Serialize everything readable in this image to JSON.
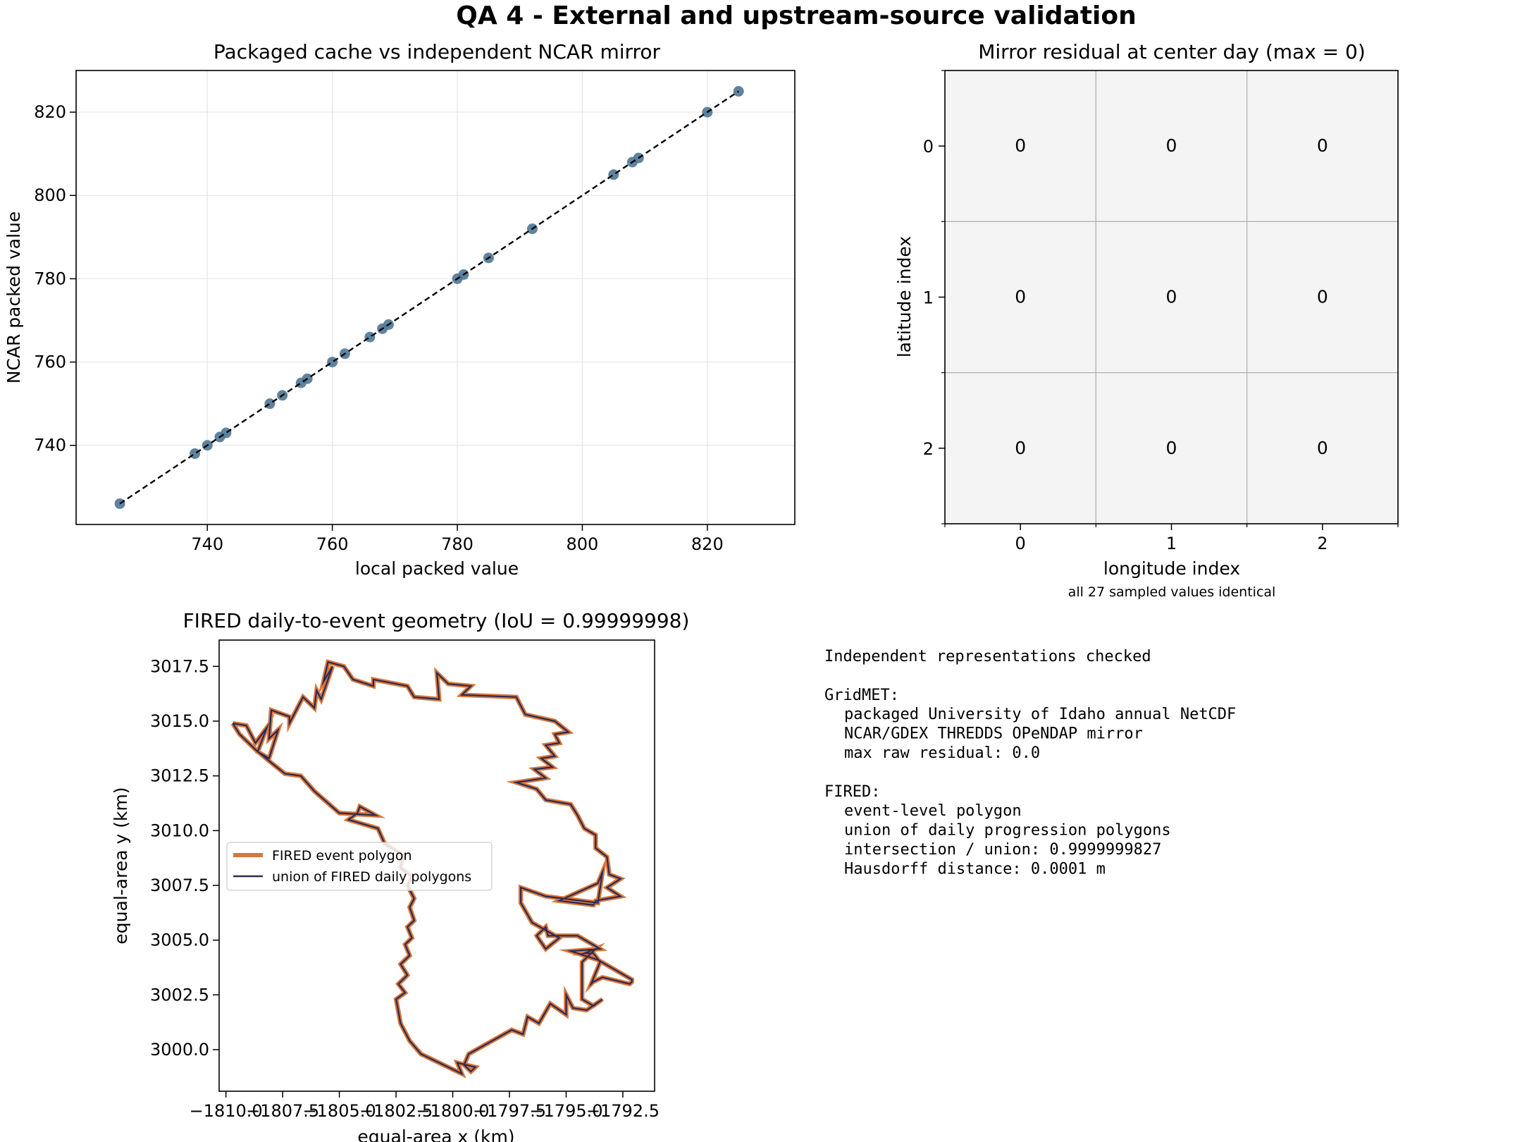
{
  "figure": {
    "title": "QA 4 - External and upstream-source validation"
  },
  "chart_data": [
    {
      "type": "scatter",
      "title": "Packaged cache vs independent NCAR mirror",
      "xlabel": "local packed value",
      "ylabel": "NCAR packed value",
      "xlim": [
        719,
        834
      ],
      "ylim": [
        721,
        830
      ],
      "xticks": [
        740,
        760,
        780,
        800,
        820
      ],
      "yticks": [
        740,
        760,
        780,
        800,
        820
      ],
      "grid": true,
      "reference_line": {
        "style": "dashed",
        "color": "#000000",
        "x": [
          726,
          825
        ],
        "y": [
          726,
          825
        ]
      },
      "point_color": "#4e7693",
      "points": [
        [
          726,
          726
        ],
        [
          738,
          738
        ],
        [
          740,
          740
        ],
        [
          742,
          742
        ],
        [
          743,
          743
        ],
        [
          750,
          750
        ],
        [
          752,
          752
        ],
        [
          755,
          755
        ],
        [
          756,
          756
        ],
        [
          760,
          760
        ],
        [
          762,
          762
        ],
        [
          766,
          766
        ],
        [
          768,
          768
        ],
        [
          769,
          769
        ],
        [
          780,
          780
        ],
        [
          781,
          781
        ],
        [
          785,
          785
        ],
        [
          792,
          792
        ],
        [
          805,
          805
        ],
        [
          808,
          808
        ],
        [
          809,
          809
        ],
        [
          820,
          820
        ],
        [
          825,
          825
        ]
      ]
    },
    {
      "type": "heatmap",
      "title": "Mirror residual at center day (max = 0)",
      "xlabel": "longitude index",
      "ylabel": "latitude index",
      "xticks": [
        0,
        1,
        2
      ],
      "yticks": [
        0,
        1,
        2
      ],
      "grid": true,
      "cell_color": "#f4f4f4",
      "grid_color": "#b0b0b0",
      "values": [
        [
          0,
          0,
          0
        ],
        [
          0,
          0,
          0
        ],
        [
          0,
          0,
          0
        ]
      ],
      "caption": "all 27 sampled values identical"
    },
    {
      "type": "line",
      "title": "FIRED daily-to-event geometry (IoU = 0.99999998)",
      "xlabel": "equal-area x (km)",
      "ylabel": "equal-area y (km)",
      "xlim": [
        -1810.3,
        -1791.1
      ],
      "ylim": [
        2998.1,
        3018.7
      ],
      "xticks": [
        -1810.0,
        -1807.5,
        -1805.0,
        -1802.5,
        -1800.0,
        -1797.5,
        -1795.0,
        -1792.5
      ],
      "xtick_labels": [
        "−1810.0",
        "−1807.5",
        "−1805.0",
        "−1802.5",
        "−1800.0",
        "−1797.5",
        "−1795.0",
        "−1792.5"
      ],
      "yticks": [
        3000.0,
        3002.5,
        3005.0,
        3007.5,
        3010.0,
        3012.5,
        3015.0,
        3017.5
      ],
      "ytick_labels": [
        "3000.0",
        "3002.5",
        "3005.0",
        "3007.5",
        "3010.0",
        "3012.5",
        "3015.0",
        "3017.5"
      ],
      "legend_position": "center-left",
      "series": [
        {
          "name": "FIRED event polygon",
          "color": "#d9773a"
        },
        {
          "name": "union of FIRED daily polygons",
          "color": "#2a2a55"
        }
      ],
      "outline": [
        [
          -1809.7,
          3014.9
        ],
        [
          -1809.1,
          3014.8
        ],
        [
          -1808.7,
          3014.0
        ],
        [
          -1808.2,
          3014.7
        ],
        [
          -1808.6,
          3013.6
        ],
        [
          -1808.1,
          3013.3
        ],
        [
          -1807.7,
          3014.6
        ],
        [
          -1808.1,
          3014.2
        ],
        [
          -1808.0,
          3015.5
        ],
        [
          -1807.2,
          3015.2
        ],
        [
          -1807.2,
          3014.9
        ],
        [
          -1806.6,
          3016.1
        ],
        [
          -1806.1,
          3015.6
        ],
        [
          -1806.0,
          3016.4
        ],
        [
          -1805.8,
          3016.0
        ],
        [
          -1805.3,
          3017.5
        ],
        [
          -1805.7,
          3016.8
        ],
        [
          -1805.5,
          3017.7
        ],
        [
          -1804.8,
          3017.5
        ],
        [
          -1804.4,
          3016.9
        ],
        [
          -1803.5,
          3016.6
        ],
        [
          -1803.5,
          3016.9
        ],
        [
          -1802.0,
          3016.6
        ],
        [
          -1801.7,
          3016.1
        ],
        [
          -1800.6,
          3016.0
        ],
        [
          -1800.7,
          3017.2
        ],
        [
          -1800.2,
          3016.7
        ],
        [
          -1799.2,
          3016.6
        ],
        [
          -1799.6,
          3016.2
        ],
        [
          -1797.2,
          3016.1
        ],
        [
          -1796.8,
          3015.3
        ],
        [
          -1795.5,
          3015.0
        ],
        [
          -1794.9,
          3014.5
        ],
        [
          -1795.5,
          3014.4
        ],
        [
          -1795.3,
          3014.0
        ],
        [
          -1795.9,
          3013.9
        ],
        [
          -1795.5,
          3013.4
        ],
        [
          -1796.1,
          3013.3
        ],
        [
          -1795.6,
          3012.9
        ],
        [
          -1796.4,
          3012.8
        ],
        [
          -1795.9,
          3012.4
        ],
        [
          -1797.2,
          3012.2
        ],
        [
          -1796.3,
          3011.9
        ],
        [
          -1795.9,
          3011.4
        ],
        [
          -1794.8,
          3011.2
        ],
        [
          -1794.5,
          3010.7
        ],
        [
          -1794.2,
          3010.1
        ],
        [
          -1793.7,
          3009.8
        ],
        [
          -1793.7,
          3009.2
        ],
        [
          -1793.2,
          3008.8
        ],
        [
          -1793.1,
          3008.0
        ],
        [
          -1792.6,
          3007.8
        ],
        [
          -1793.2,
          3007.4
        ],
        [
          -1792.6,
          3007.0
        ],
        [
          -1793.7,
          3006.8
        ],
        [
          -1793.8,
          3006.6
        ],
        [
          -1795.3,
          3006.8
        ],
        [
          -1793.6,
          3007.6
        ],
        [
          -1793.4,
          3008.1
        ],
        [
          -1793.6,
          3006.7
        ],
        [
          -1795.9,
          3007.0
        ],
        [
          -1797.0,
          3007.4
        ],
        [
          -1797.0,
          3007.2
        ],
        [
          -1797.0,
          3006.7
        ],
        [
          -1796.5,
          3005.8
        ],
        [
          -1795.3,
          3005.1
        ],
        [
          -1795.9,
          3004.6
        ],
        [
          -1796.3,
          3005.2
        ],
        [
          -1795.9,
          3005.6
        ],
        [
          -1795.8,
          3005.2
        ],
        [
          -1794.5,
          3005.2
        ],
        [
          -1793.5,
          3004.6
        ],
        [
          -1794.8,
          3004.5
        ],
        [
          -1793.6,
          3004.1
        ],
        [
          -1792.1,
          3003.2
        ],
        [
          -1792.1,
          3003.1
        ],
        [
          -1792.2,
          3003.0
        ],
        [
          -1793.4,
          3003.3
        ],
        [
          -1793.8,
          3003.1
        ],
        [
          -1793.9,
          3003.0
        ],
        [
          -1793.5,
          3004.0
        ],
        [
          -1793.8,
          3004.4
        ],
        [
          -1794.2,
          3004.4
        ],
        [
          -1793.7,
          3004.6
        ],
        [
          -1794.3,
          3004.0
        ],
        [
          -1794.3,
          3002.3
        ],
        [
          -1793.8,
          3002.0
        ],
        [
          -1793.4,
          3002.3
        ],
        [
          -1794.1,
          3001.8
        ],
        [
          -1794.7,
          3001.9
        ],
        [
          -1795.0,
          3002.5
        ],
        [
          -1795.0,
          3001.6
        ],
        [
          -1795.7,
          3002.1
        ],
        [
          -1796.2,
          3001.2
        ],
        [
          -1796.7,
          3001.5
        ],
        [
          -1796.9,
          3000.7
        ],
        [
          -1797.4,
          3000.9
        ],
        [
          -1799.3,
          2999.8
        ],
        [
          -1799.5,
          2999.3
        ],
        [
          -1799.2,
          2999.0
        ],
        [
          -1799.0,
          2999.2
        ],
        [
          -1799.8,
          2999.4
        ],
        [
          -1799.6,
          2998.9
        ],
        [
          -1800.0,
          2999.1
        ],
        [
          -1801.4,
          2999.8
        ],
        [
          -1801.9,
          3000.4
        ],
        [
          -1802.3,
          3001.2
        ],
        [
          -1802.5,
          3002.3
        ],
        [
          -1802.1,
          3002.6
        ],
        [
          -1802.4,
          3003.0
        ],
        [
          -1802.0,
          3003.4
        ],
        [
          -1802.3,
          3003.9
        ],
        [
          -1801.9,
          3004.3
        ],
        [
          -1802.1,
          3004.8
        ],
        [
          -1801.8,
          3005.1
        ],
        [
          -1802.0,
          3005.6
        ],
        [
          -1801.7,
          3005.9
        ],
        [
          -1801.9,
          3006.5
        ],
        [
          -1801.7,
          3006.9
        ],
        [
          -1802.0,
          3007.5
        ],
        [
          -1801.8,
          3007.9
        ],
        [
          -1802.3,
          3008.3
        ],
        [
          -1802.2,
          3008.9
        ],
        [
          -1803.0,
          3009.4
        ],
        [
          -1803.3,
          3010.1
        ],
        [
          -1804.6,
          3010.5
        ],
        [
          -1804.2,
          3010.8
        ],
        [
          -1804.1,
          3011.1
        ],
        [
          -1803.4,
          3010.7
        ],
        [
          -1805.0,
          3010.8
        ],
        [
          -1806.1,
          3011.8
        ],
        [
          -1806.7,
          3012.5
        ],
        [
          -1807.4,
          3012.6
        ],
        [
          -1808.0,
          3013.1
        ],
        [
          -1808.7,
          3013.7
        ],
        [
          -1809.4,
          3014.4
        ],
        [
          -1809.7,
          3014.9
        ]
      ]
    }
  ],
  "summary": {
    "heading": "Independent representations checked",
    "sections": [
      {
        "label": "GridMET:",
        "lines": [
          "packaged University of Idaho annual NetCDF",
          "NCAR/GDEX THREDDS OPeNDAP mirror",
          "max raw residual: 0.0"
        ]
      },
      {
        "label": "FIRED:",
        "lines": [
          "event-level polygon",
          "union of daily progression polygons",
          "intersection / union: 0.9999999827",
          "Hausdorff distance: 0.0001 m"
        ]
      }
    ]
  }
}
